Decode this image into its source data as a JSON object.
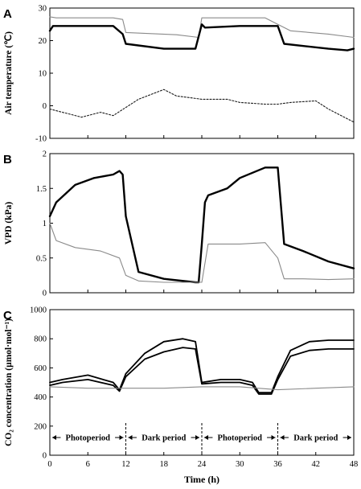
{
  "chart_data": [
    {
      "panel": "A",
      "type": "line",
      "ylabel": "Air temperature (℃)",
      "ylim": [
        -10,
        30
      ],
      "yticks": [
        "-10",
        "0",
        "10",
        "20",
        "30"
      ],
      "xlim": [
        0,
        48
      ],
      "series": [
        {
          "style": "thin-gray",
          "x": [
            0,
            1,
            10,
            11.5,
            12,
            20,
            23.5,
            24,
            24.5,
            34,
            36,
            38,
            44,
            48
          ],
          "y": [
            27.3,
            27,
            27,
            26.5,
            22.5,
            21.8,
            21,
            27,
            27,
            27,
            25,
            23,
            22,
            21
          ]
        },
        {
          "style": "thick-black",
          "x": [
            0,
            0.5,
            10,
            11.5,
            12,
            18,
            23,
            24,
            24.5,
            30,
            36,
            37,
            44,
            47,
            48
          ],
          "y": [
            23,
            24.5,
            24.5,
            22,
            19,
            17.5,
            17.5,
            25,
            24,
            24.5,
            24.5,
            19,
            17.5,
            17,
            17.5
          ]
        },
        {
          "style": "dashed",
          "x": [
            0,
            3,
            5,
            8,
            10,
            14,
            18,
            20,
            24,
            28,
            30,
            34,
            36,
            38,
            42,
            44,
            48
          ],
          "y": [
            -1,
            -2.5,
            -3.5,
            -2,
            -3,
            2,
            5,
            3,
            2,
            2,
            1,
            0.5,
            0.5,
            1,
            1.5,
            -1,
            -5
          ]
        }
      ]
    },
    {
      "panel": "B",
      "type": "line",
      "ylabel": "VPD (kPa)",
      "ylim": [
        0,
        2
      ],
      "yticks": [
        "0",
        "0.5",
        "1",
        "1.5",
        "2"
      ],
      "xlim": [
        0,
        48
      ],
      "series": [
        {
          "style": "thick-black",
          "x": [
            0,
            1,
            4,
            7,
            10,
            11,
            11.5,
            12,
            14,
            18,
            23,
            23.5,
            24,
            24.5,
            25,
            28,
            30,
            34,
            35.5,
            36,
            37,
            40,
            44,
            48
          ],
          "y": [
            1.1,
            1.3,
            1.55,
            1.65,
            1.7,
            1.75,
            1.7,
            1.1,
            0.3,
            0.2,
            0.15,
            0.15,
            0.7,
            1.3,
            1.4,
            1.5,
            1.65,
            1.8,
            1.8,
            1.8,
            0.7,
            0.6,
            0.45,
            0.35
          ]
        },
        {
          "style": "thin-gray",
          "x": [
            0,
            1,
            4,
            8,
            11,
            12,
            14,
            18,
            24,
            25,
            30,
            34,
            36,
            37,
            40,
            44,
            48
          ],
          "y": [
            1.0,
            0.75,
            0.65,
            0.6,
            0.5,
            0.25,
            0.17,
            0.15,
            0.15,
            0.7,
            0.7,
            0.72,
            0.5,
            0.2,
            0.2,
            0.19,
            0.2
          ]
        }
      ]
    },
    {
      "panel": "C",
      "type": "line",
      "ylabel": "CO₂ concentration (µmol·mol⁻¹)",
      "ylim": [
        0,
        1000
      ],
      "yticks": [
        "0",
        "200",
        "400",
        "600",
        "800",
        "1000"
      ],
      "xlim": [
        0,
        48
      ],
      "xlabel": "Time (h)",
      "xticks": [
        "0",
        "6",
        "12",
        "18",
        "24",
        "30",
        "36",
        "42",
        "48"
      ],
      "series": [
        {
          "style": "black-a",
          "x": [
            0,
            2,
            6,
            10,
            11,
            12,
            15,
            18,
            21,
            23,
            24,
            27,
            30,
            32,
            33,
            35,
            36,
            38,
            41,
            44,
            48
          ],
          "y": [
            500,
            520,
            550,
            500,
            450,
            560,
            700,
            780,
            800,
            780,
            500,
            520,
            520,
            500,
            430,
            430,
            540,
            720,
            780,
            790,
            790
          ]
        },
        {
          "style": "black-b",
          "x": [
            0,
            2,
            6,
            10,
            11,
            12,
            15,
            18,
            21,
            23,
            24,
            27,
            30,
            32,
            33,
            35,
            36,
            38,
            41,
            44,
            48
          ],
          "y": [
            480,
            500,
            520,
            480,
            440,
            540,
            660,
            710,
            740,
            730,
            490,
            500,
            500,
            480,
            420,
            420,
            520,
            680,
            720,
            730,
            730
          ]
        },
        {
          "style": "thin-gray",
          "x": [
            0,
            6,
            12,
            18,
            24,
            30,
            36,
            42,
            48
          ],
          "y": [
            470,
            460,
            460,
            460,
            470,
            470,
            450,
            460,
            470
          ]
        }
      ],
      "periods": [
        {
          "label": "Photoperiod",
          "from": 0,
          "to": 12
        },
        {
          "label": "Dark period",
          "from": 12,
          "to": 24
        },
        {
          "label": "Photoperiod",
          "from": 24,
          "to": 36
        },
        {
          "label": "Dark period",
          "from": 36,
          "to": 48
        }
      ]
    }
  ],
  "panel_labels": [
    "A",
    "B",
    "C"
  ]
}
